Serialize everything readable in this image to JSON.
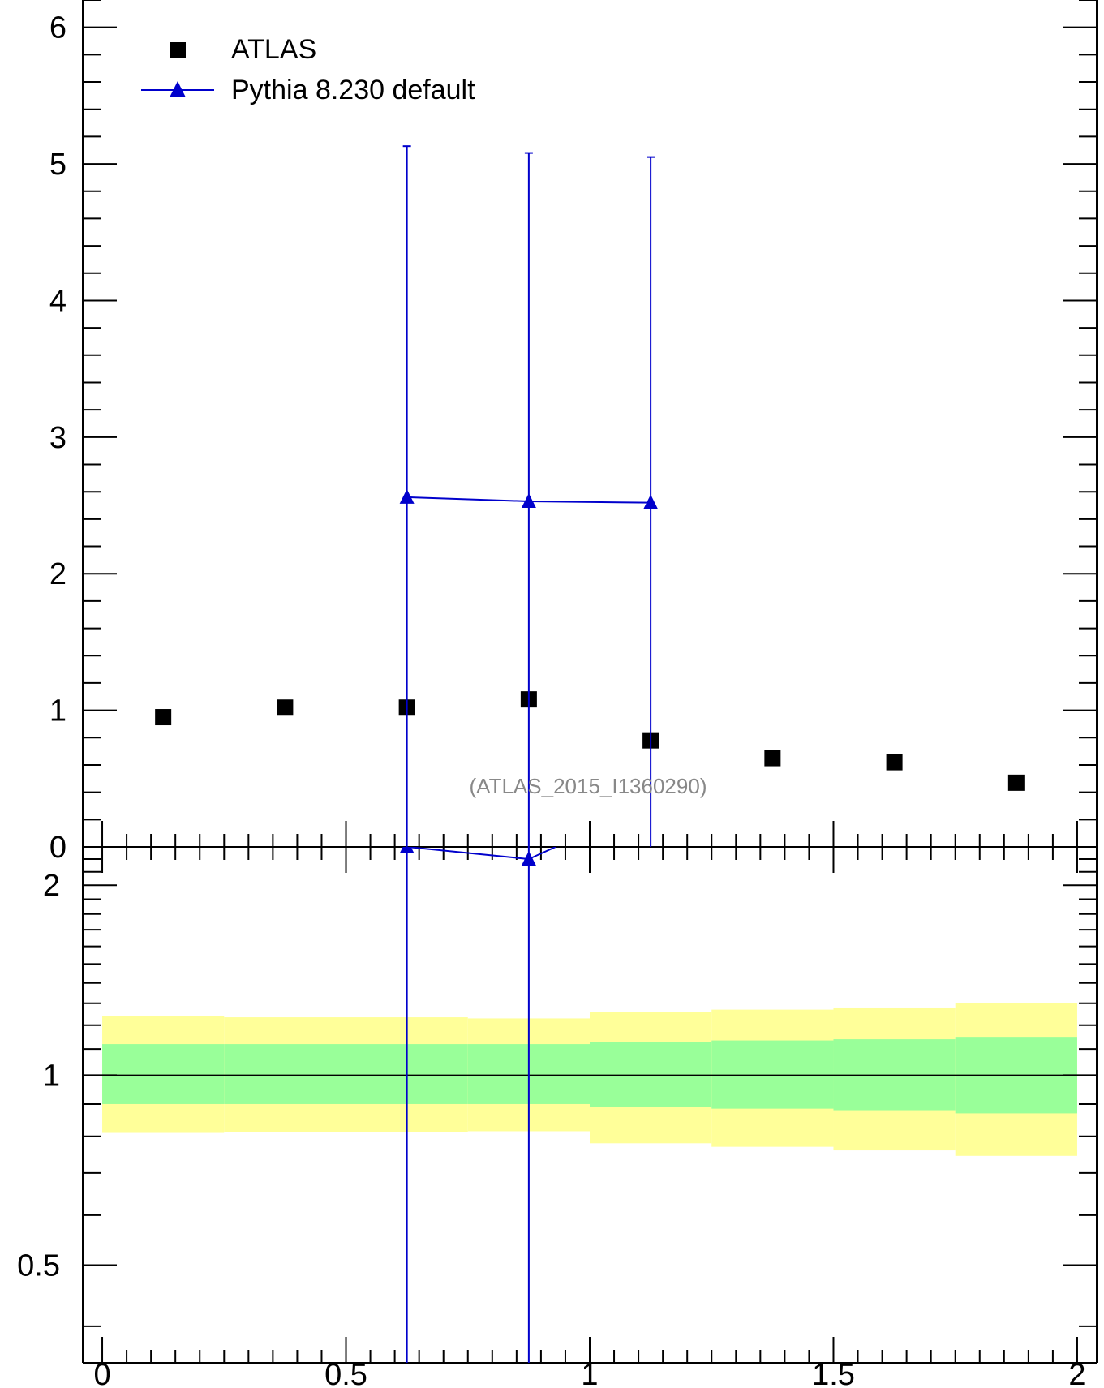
{
  "chart_data": {
    "type": "scatter",
    "x_ticks": [
      "0",
      "0.5",
      "1",
      "1.5",
      "2"
    ],
    "xlim": [
      -0.04,
      2.04
    ],
    "grid": false,
    "legend_position": "top-left",
    "watermark": "(ATLAS_2015_I1360290)",
    "main": {
      "ylim": [
        0,
        6.2
      ],
      "y_ticks": [
        "0",
        "1",
        "2",
        "3",
        "4",
        "5",
        "6"
      ],
      "series": [
        {
          "name": "ATLAS",
          "marker": "square",
          "color": "#000000",
          "x": [
            0.125,
            0.375,
            0.625,
            0.875,
            1.125,
            1.375,
            1.625,
            1.875
          ],
          "y": [
            0.95,
            1.02,
            1.02,
            1.08,
            0.78,
            0.65,
            0.62,
            0.47
          ]
        },
        {
          "name": "Pythia 8.230 default",
          "marker": "triangle",
          "color": "#0000cc",
          "x": [
            0.625,
            0.875,
            1.125
          ],
          "y": [
            2.56,
            2.53,
            2.52
          ],
          "err_high": [
            5.13,
            5.08,
            5.05
          ],
          "err_low": [
            0,
            0,
            0
          ]
        }
      ]
    },
    "ratio": {
      "ylim": [
        0.35,
        2.3
      ],
      "y_ticks": [
        "0.5",
        "1",
        "2"
      ],
      "y_tick_values": [
        0.5,
        1,
        2
      ],
      "reference": 1,
      "band_bins": [
        0,
        0.25,
        0.5,
        0.75,
        1.0,
        1.25,
        1.5,
        1.75,
        2.0
      ],
      "band_inner_low": [
        0.9,
        0.9,
        0.9,
        0.9,
        0.89,
        0.885,
        0.88,
        0.87
      ],
      "band_inner_high": [
        1.12,
        1.12,
        1.12,
        1.12,
        1.13,
        1.135,
        1.14,
        1.15
      ],
      "band_outer_low": [
        0.81,
        0.812,
        0.813,
        0.815,
        0.78,
        0.77,
        0.76,
        0.745
      ],
      "band_outer_high": [
        1.24,
        1.235,
        1.235,
        1.23,
        1.26,
        1.27,
        1.28,
        1.3
      ],
      "band_inner_color": "#99ff99",
      "band_outer_color": "#ffff99",
      "series": [
        {
          "name": "Pythia 8.230 default",
          "color": "#0000cc",
          "x": [
            0.625,
            0.875
          ],
          "y": [
            2.3,
            2.2
          ],
          "continuation": [
            0.875,
            2.2,
            0.93,
            2.3
          ]
        }
      ]
    }
  }
}
